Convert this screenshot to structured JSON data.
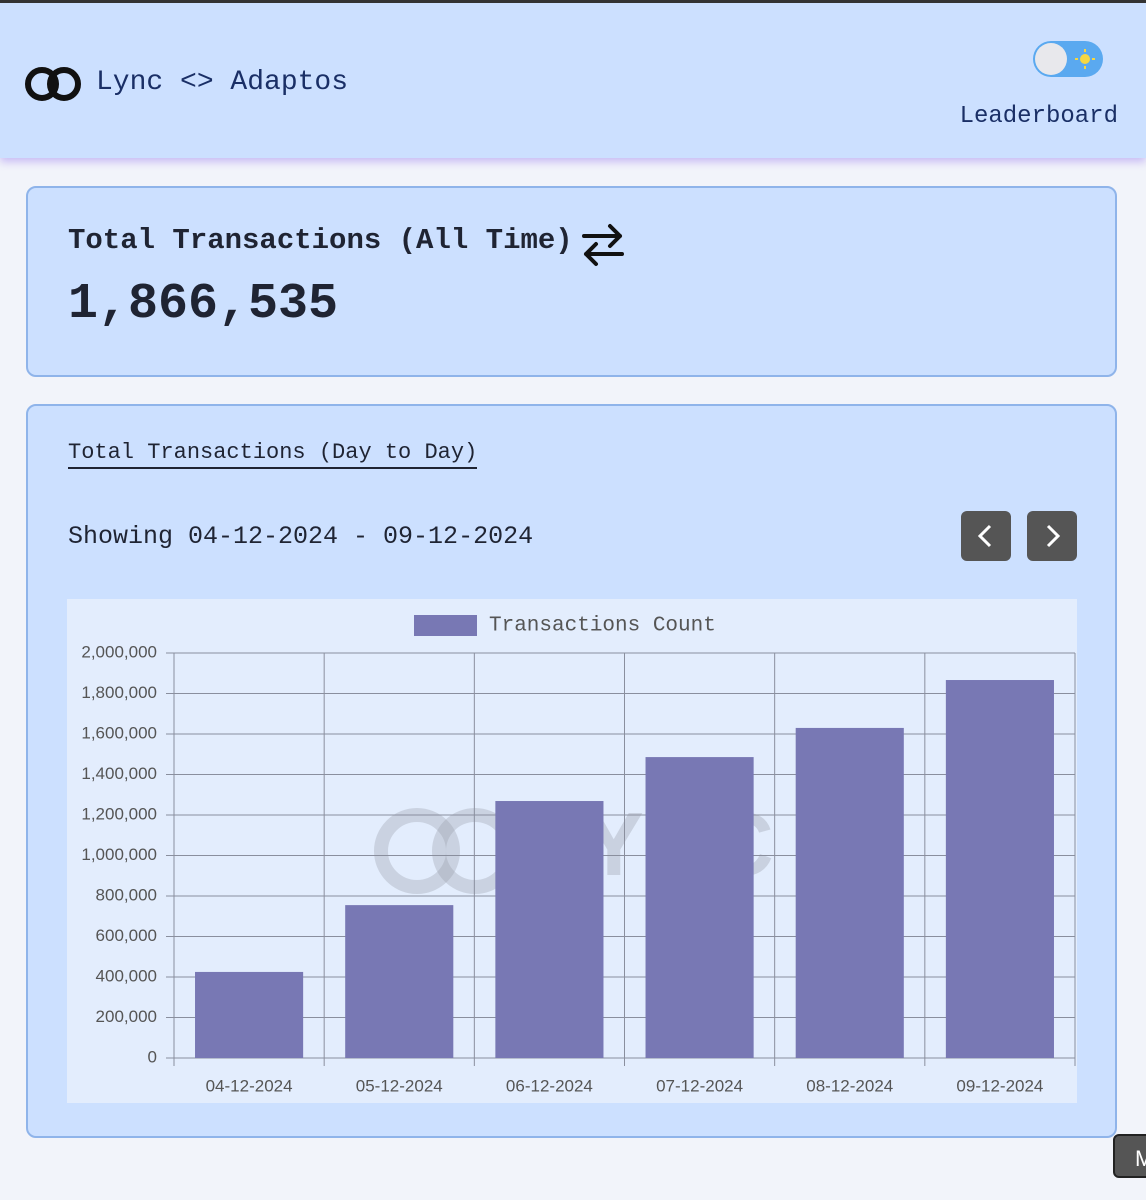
{
  "header": {
    "brand": "Lync <> Adaptos",
    "nav": "Leaderboard"
  },
  "summary": {
    "title": "Total Transactions (All Time)",
    "value": "1,866,535"
  },
  "chart_section": {
    "title": "Total Transactions (Day to Day)",
    "range": "Showing 04-12-2024 - 09-12-2024"
  },
  "corner_button": "M",
  "chart_data": {
    "type": "bar",
    "watermark": "LYNC",
    "categories": [
      "04-12-2024",
      "05-12-2024",
      "06-12-2024",
      "07-12-2024",
      "08-12-2024",
      "09-12-2024"
    ],
    "series": [
      {
        "name": "Transactions Count",
        "color": "#7878b4",
        "values": [
          425000,
          755000,
          1269000,
          1486000,
          1630000,
          1866535
        ]
      }
    ],
    "ylim": [
      0,
      2000000
    ],
    "yticks": [
      {
        "value": 0,
        "label": "0"
      },
      {
        "value": 200000,
        "label": "200,000"
      },
      {
        "value": 400000,
        "label": "400,000"
      },
      {
        "value": 600000,
        "label": "600,000"
      },
      {
        "value": 800000,
        "label": "800,000"
      },
      {
        "value": 1000000,
        "label": "1,000,000"
      },
      {
        "value": 1200000,
        "label": "1,200,000"
      },
      {
        "value": 1400000,
        "label": "1,400,000"
      },
      {
        "value": 1600000,
        "label": "1,600,000"
      },
      {
        "value": 1800000,
        "label": "1,800,000"
      },
      {
        "value": 2000000,
        "label": "2,000,000"
      }
    ],
    "grid": true,
    "legend": "top"
  }
}
